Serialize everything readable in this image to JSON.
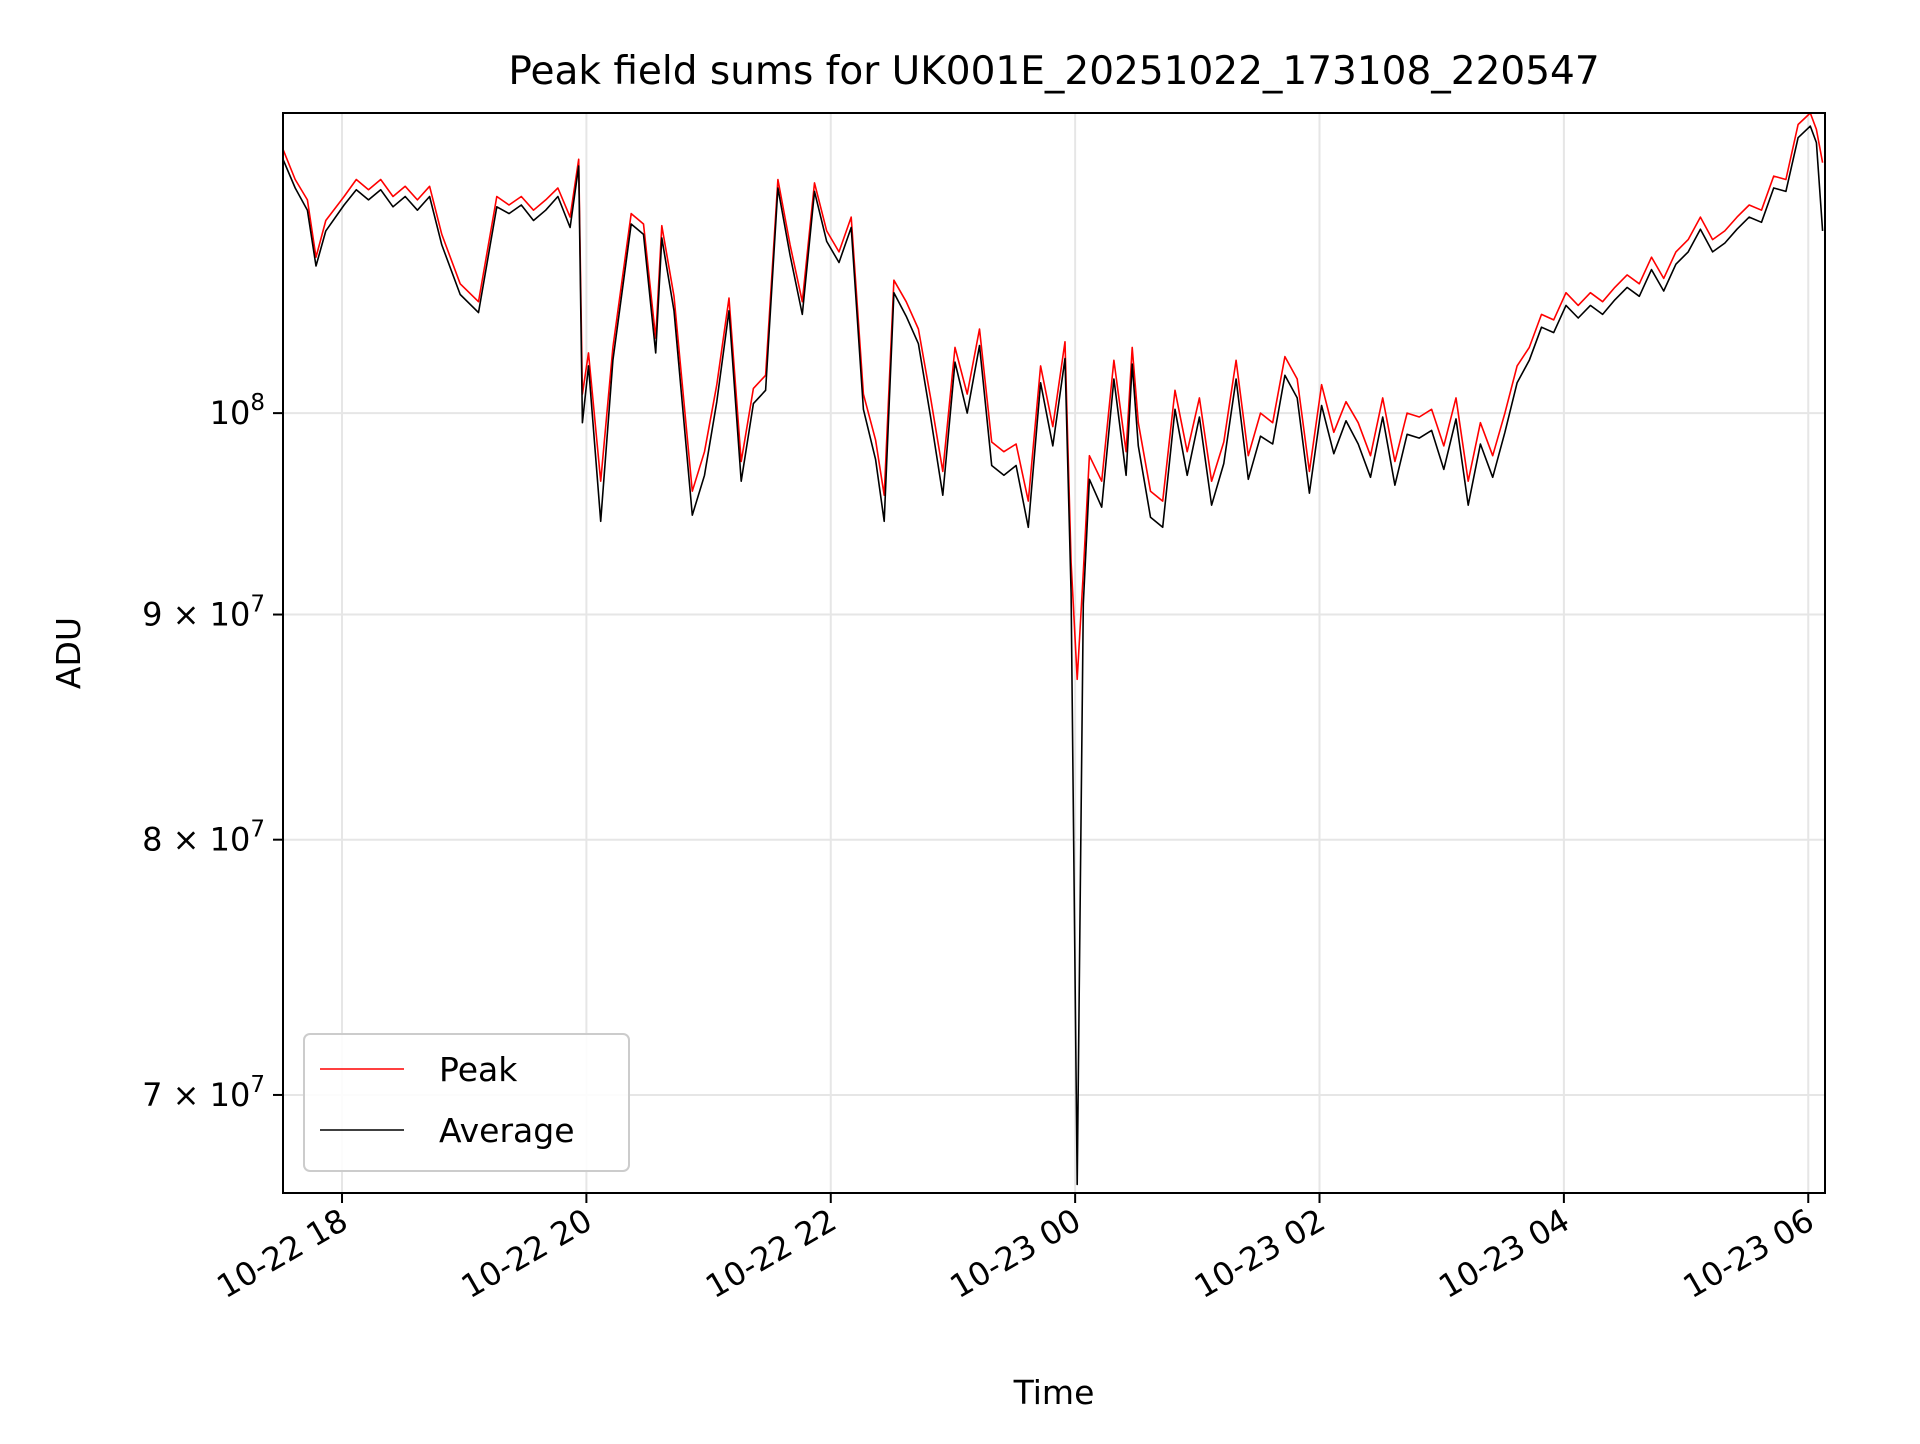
{
  "chart_data": {
    "type": "line",
    "title": "Peak field sums for UK001E_20251022_173108_220547",
    "xlabel": "Time",
    "ylabel": "ADU",
    "yscale": "log",
    "grid": true,
    "legend_position": "lower-left",
    "x_unit": "hours since 10-22 17:31",
    "xlim": [
      0.0,
      12.62
    ],
    "ylim": [
      66500000,
      117000000
    ],
    "x_ticks": [
      {
        "label": "10-22 18",
        "value": 0.483
      },
      {
        "label": "10-22 20",
        "value": 2.483
      },
      {
        "label": "10-22 22",
        "value": 4.483
      },
      {
        "label": "10-23 00",
        "value": 6.483
      },
      {
        "label": "10-23 02",
        "value": 8.483
      },
      {
        "label": "10-23 04",
        "value": 10.483
      },
      {
        "label": "10-23 06",
        "value": 12.483
      }
    ],
    "y_ticks": [
      {
        "value": 70000000,
        "mantissa": "7",
        "times": "×",
        "base": "10",
        "exp": "7"
      },
      {
        "value": 80000000,
        "mantissa": "8",
        "times": "×",
        "base": "10",
        "exp": "7"
      },
      {
        "value": 90000000,
        "mantissa": "9",
        "times": "×",
        "base": "10",
        "exp": "7"
      },
      {
        "value": 100000000,
        "mantissa": "",
        "times": "",
        "base": "10",
        "exp": "8"
      }
    ],
    "series": [
      {
        "name": "Peak",
        "color": "#ff0000",
        "x": [
          0.0,
          0.1,
          0.2,
          0.27,
          0.35,
          0.5,
          0.6,
          0.7,
          0.8,
          0.9,
          1.0,
          1.1,
          1.2,
          1.3,
          1.45,
          1.6,
          1.75,
          1.85,
          1.95,
          2.05,
          2.15,
          2.25,
          2.35,
          2.42,
          2.45,
          2.5,
          2.6,
          2.7,
          2.85,
          2.95,
          3.05,
          3.1,
          3.2,
          3.35,
          3.45,
          3.55,
          3.65,
          3.75,
          3.85,
          3.95,
          4.05,
          4.15,
          4.25,
          4.35,
          4.45,
          4.55,
          4.65,
          4.75,
          4.85,
          4.92,
          5.0,
          5.1,
          5.2,
          5.3,
          5.4,
          5.5,
          5.6,
          5.7,
          5.8,
          5.9,
          6.0,
          6.1,
          6.2,
          6.3,
          6.4,
          6.45,
          6.5,
          6.55,
          6.6,
          6.7,
          6.8,
          6.9,
          6.95,
          7.0,
          7.1,
          7.2,
          7.3,
          7.4,
          7.5,
          7.6,
          7.7,
          7.8,
          7.9,
          8.0,
          8.1,
          8.2,
          8.3,
          8.4,
          8.5,
          8.6,
          8.7,
          8.8,
          8.9,
          9.0,
          9.1,
          9.2,
          9.3,
          9.4,
          9.5,
          9.6,
          9.7,
          9.8,
          9.9,
          10.0,
          10.1,
          10.2,
          10.3,
          10.4,
          10.5,
          10.6,
          10.7,
          10.8,
          10.9,
          11.0,
          11.1,
          11.2,
          11.3,
          11.4,
          11.5,
          11.6,
          11.7,
          11.8,
          11.9,
          12.0,
          12.1,
          12.2,
          12.3,
          12.4,
          12.5,
          12.55,
          12.6
        ],
        "values": [
          114800000,
          113000000,
          111800000,
          108500000,
          110600000,
          112000000,
          113000000,
          112400000,
          113000000,
          112000000,
          112600000,
          111800000,
          112600000,
          109800000,
          107000000,
          106000000,
          112000000,
          111500000,
          112000000,
          111200000,
          111800000,
          112500000,
          110800000,
          114200000,
          101000000,
          103200000,
          96500000,
          103500000,
          111000000,
          110400000,
          104000000,
          110300000,
          106300000,
          96000000,
          98000000,
          101500000,
          106200000,
          97500000,
          101300000,
          102000000,
          113000000,
          109200000,
          106000000,
          112800000,
          110000000,
          108800000,
          110800000,
          101000000,
          98600000,
          95800000,
          107200000,
          106000000,
          104500000,
          100800000,
          97000000,
          103500000,
          101000000,
          104500000,
          98500000,
          98000000,
          98400000,
          95500000,
          102500000,
          99300000,
          103800000,
          92500000,
          87000000,
          92000000,
          97800000,
          96500000,
          102800000,
          98000000,
          103500000,
          99500000,
          96000000,
          95500000,
          101200000,
          98000000,
          100800000,
          96500000,
          98500000,
          102800000,
          97800000,
          100000000,
          99500000,
          103000000,
          101800000,
          97000000,
          101500000,
          99000000,
          100600000,
          99500000,
          97800000,
          100800000,
          97500000,
          100000000,
          99800000,
          100200000,
          98300000,
          100800000,
          96500000,
          99500000,
          97800000,
          100000000,
          102500000,
          103500000,
          105300000,
          105000000,
          106500000,
          105800000,
          106500000,
          106000000,
          106800000,
          107500000,
          107000000,
          108500000,
          107300000,
          108800000,
          109500000,
          110800000,
          109500000,
          110000000,
          110800000,
          111500000,
          111200000,
          113200000,
          113000000,
          116300000,
          117000000,
          116000000,
          114000000
        ]
      },
      {
        "name": "Average",
        "color": "#000000",
        "x": [
          0.0,
          0.1,
          0.2,
          0.27,
          0.35,
          0.5,
          0.6,
          0.7,
          0.8,
          0.9,
          1.0,
          1.1,
          1.2,
          1.3,
          1.45,
          1.6,
          1.75,
          1.85,
          1.95,
          2.05,
          2.15,
          2.25,
          2.35,
          2.42,
          2.45,
          2.5,
          2.6,
          2.7,
          2.85,
          2.95,
          3.05,
          3.1,
          3.2,
          3.35,
          3.45,
          3.55,
          3.65,
          3.75,
          3.85,
          3.95,
          4.05,
          4.15,
          4.25,
          4.35,
          4.45,
          4.55,
          4.65,
          4.75,
          4.85,
          4.92,
          5.0,
          5.1,
          5.2,
          5.3,
          5.4,
          5.5,
          5.6,
          5.7,
          5.8,
          5.9,
          6.0,
          6.1,
          6.2,
          6.3,
          6.4,
          6.45,
          6.5,
          6.55,
          6.6,
          6.7,
          6.8,
          6.9,
          6.95,
          7.0,
          7.1,
          7.2,
          7.3,
          7.4,
          7.5,
          7.6,
          7.7,
          7.8,
          7.9,
          8.0,
          8.1,
          8.2,
          8.3,
          8.4,
          8.5,
          8.6,
          8.7,
          8.8,
          8.9,
          9.0,
          9.1,
          9.2,
          9.3,
          9.4,
          9.5,
          9.6,
          9.7,
          9.8,
          9.9,
          10.0,
          10.1,
          10.2,
          10.3,
          10.4,
          10.5,
          10.6,
          10.7,
          10.8,
          10.9,
          11.0,
          11.1,
          11.2,
          11.3,
          11.4,
          11.5,
          11.6,
          11.7,
          11.8,
          11.9,
          12.0,
          12.1,
          12.2,
          12.3,
          12.4,
          12.5,
          12.55,
          12.6
        ],
        "values": [
          114200000,
          112500000,
          111200000,
          108000000,
          110000000,
          111500000,
          112400000,
          111800000,
          112400000,
          111400000,
          112000000,
          111200000,
          112000000,
          109200000,
          106400000,
          105400000,
          111400000,
          111000000,
          111500000,
          110600000,
          111200000,
          112000000,
          110200000,
          113800000,
          99500000,
          102500000,
          94500000,
          102800000,
          110400000,
          109800000,
          103200000,
          109600000,
          105500000,
          94800000,
          96800000,
          100600000,
          105500000,
          96500000,
          100500000,
          101200000,
          112500000,
          108600000,
          105300000,
          112300000,
          109400000,
          108200000,
          110200000,
          100200000,
          97600000,
          94500000,
          106500000,
          105200000,
          103700000,
          99800000,
          95800000,
          102700000,
          100000000,
          103600000,
          97300000,
          96800000,
          97300000,
          94200000,
          101600000,
          98300000,
          102900000,
          91000000,
          66800000,
          90500000,
          96600000,
          95200000,
          101800000,
          96800000,
          102600000,
          98300000,
          94700000,
          94200000,
          100200000,
          96800000,
          99800000,
          95300000,
          97400000,
          101800000,
          96600000,
          98800000,
          98400000,
          102000000,
          100800000,
          95900000,
          100400000,
          97900000,
          99600000,
          98400000,
          96700000,
          99800000,
          96300000,
          98900000,
          98700000,
          99100000,
          97100000,
          99700000,
          95300000,
          98400000,
          96700000,
          99000000,
          101600000,
          102800000,
          104600000,
          104300000,
          105800000,
          105100000,
          105800000,
          105300000,
          106100000,
          106800000,
          106300000,
          107800000,
          106600000,
          108100000,
          108800000,
          110100000,
          108800000,
          109300000,
          110100000,
          110800000,
          110500000,
          112500000,
          112300000,
          115500000,
          116200000,
          115200000,
          110000000
        ]
      }
    ]
  }
}
